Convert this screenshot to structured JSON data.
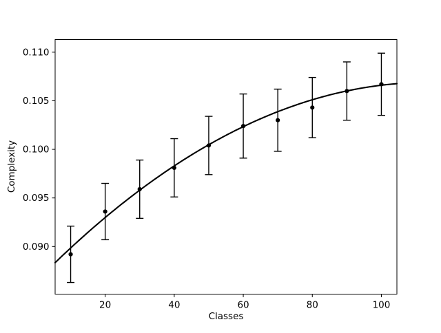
{
  "figure": {
    "background_color": "#ffffff",
    "foreground_color": "#000000"
  },
  "chart_data": {
    "type": "scatter",
    "title": "",
    "xlabel": "Classes",
    "ylabel": "Complexity",
    "x": [
      10,
      20,
      30,
      40,
      50,
      60,
      70,
      80,
      90,
      100
    ],
    "y": [
      0.0892,
      0.0936,
      0.0959,
      0.0981,
      0.1004,
      0.1024,
      0.103,
      0.1043,
      0.106,
      0.1067
    ],
    "yerr": [
      0.0029,
      0.0029,
      0.003,
      0.003,
      0.003,
      0.0033,
      0.0032,
      0.0031,
      0.003,
      0.0032
    ],
    "series": [
      {
        "name": "data-points-with-errorbars",
        "style": "black dot markers with capped error bars"
      },
      {
        "name": "fitted-curve",
        "style": "solid black line"
      }
    ],
    "fit_curve": {
      "model": "quadratic",
      "c0": 0.0864,
      "c1": 0.000361,
      "c2": -1.59e-06,
      "x_start": 5.5,
      "x_end": 104.5
    },
    "xlim": [
      5.5,
      104.5
    ],
    "ylim": [
      0.0851,
      0.1113
    ],
    "xticks": [
      20,
      40,
      60,
      80,
      100
    ],
    "xtick_labels": [
      "20",
      "40",
      "60",
      "80",
      "100"
    ],
    "yticks": [
      0.09,
      0.095,
      0.1,
      0.105,
      0.11
    ],
    "ytick_labels": [
      "0.090",
      "0.095",
      "0.100",
      "0.105",
      "0.110"
    ],
    "grid": false,
    "legend": "none",
    "colors": {
      "data": "#000000",
      "curve": "#000000",
      "axes": "#000000",
      "background": "#ffffff"
    }
  }
}
